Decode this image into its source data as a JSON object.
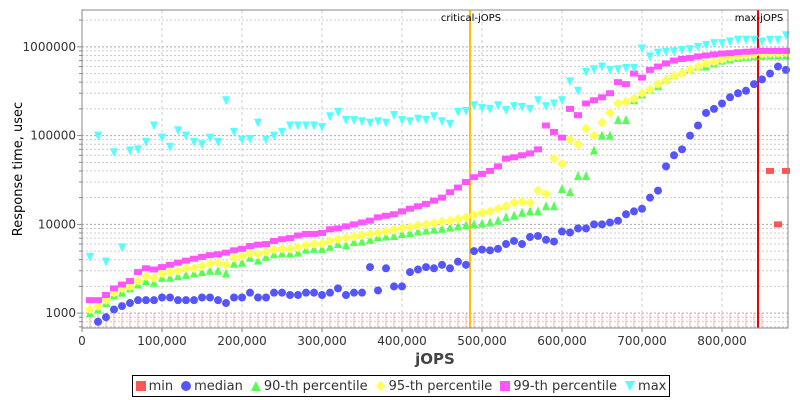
{
  "chart_data": {
    "type": "scatter",
    "title": "",
    "xlabel": "jOPS",
    "ylabel": "Response time, usec",
    "xlim": [
      0,
      882500
    ],
    "ylim": [
      680,
      2600000
    ],
    "yscale": "log",
    "grid": true,
    "legend_position": "bottom",
    "x_ticks": [
      "0",
      "100,000",
      "200,000",
      "300,000",
      "400,000",
      "500,000",
      "600,000",
      "700,000",
      "800,000"
    ],
    "x_tick_values": [
      0,
      100000,
      200000,
      300000,
      400000,
      500000,
      600000,
      700000,
      800000
    ],
    "y_ticks": [
      "1000",
      "10000",
      "100000",
      "1000000"
    ],
    "y_tick_values": [
      1000,
      10000,
      100000,
      1000000
    ],
    "markers": [
      {
        "label": "critical-jOPS",
        "x": 485000,
        "color": "#ffc000"
      },
      {
        "label": "max-jOPS",
        "x": 845000,
        "color": "#ee0000"
      }
    ],
    "x": [
      10000,
      20000,
      30000,
      40000,
      50000,
      60000,
      70000,
      80000,
      90000,
      100000,
      110000,
      120000,
      130000,
      140000,
      150000,
      160000,
      170000,
      180000,
      190000,
      200000,
      210000,
      220000,
      230000,
      240000,
      250000,
      260000,
      270000,
      280000,
      290000,
      300000,
      310000,
      320000,
      330000,
      340000,
      350000,
      360000,
      370000,
      380000,
      390000,
      400000,
      410000,
      420000,
      430000,
      440000,
      450000,
      460000,
      470000,
      480000,
      490000,
      500000,
      510000,
      520000,
      530000,
      540000,
      550000,
      560000,
      570000,
      580000,
      590000,
      600000,
      610000,
      620000,
      630000,
      640000,
      650000,
      660000,
      670000,
      680000,
      690000,
      700000,
      710000,
      720000,
      730000,
      740000,
      750000,
      760000,
      770000,
      780000,
      790000,
      800000,
      810000,
      820000,
      830000,
      840000,
      850000,
      860000,
      870000,
      880000
    ],
    "series": [
      {
        "name": "min",
        "color": "#ff5555",
        "shape": "square",
        "values": [
          500,
          500,
          500,
          500,
          500,
          500,
          500,
          500,
          500,
          500,
          500,
          500,
          500,
          500,
          500,
          500,
          500,
          500,
          500,
          500,
          500,
          500,
          500,
          500,
          500,
          500,
          500,
          500,
          500,
          500,
          500,
          500,
          500,
          500,
          500,
          500,
          500,
          500,
          500,
          500,
          500,
          500,
          500,
          500,
          500,
          500,
          500,
          500,
          500,
          500,
          500,
          500,
          500,
          500,
          500,
          500,
          500,
          500,
          500,
          500,
          500,
          500,
          500,
          500,
          500,
          500,
          500,
          500,
          500,
          500,
          500,
          500,
          500,
          500,
          500,
          500,
          500,
          500,
          500,
          500,
          500,
          500,
          500,
          500,
          500,
          40000,
          10000,
          40000
        ]
      },
      {
        "name": "median",
        "color": "#5555ff",
        "shape": "circle",
        "values": [
          null,
          800,
          900,
          1100,
          1200,
          1300,
          1400,
          1400,
          1400,
          1500,
          1500,
          1400,
          1400,
          1400,
          1500,
          1500,
          1400,
          1300,
          1500,
          1500,
          1700,
          1500,
          1500,
          1700,
          1700,
          1600,
          1600,
          1700,
          1700,
          1600,
          1700,
          1900,
          1600,
          1700,
          1700,
          3300,
          1800,
          3200,
          2000,
          2000,
          2900,
          3100,
          3300,
          3200,
          3500,
          3200,
          3800,
          3500,
          5000,
          5200,
          5100,
          5300,
          6000,
          6500,
          6000,
          7200,
          7400,
          6700,
          6400,
          8300,
          8100,
          9000,
          9000,
          10000,
          10000,
          10500,
          11000,
          13000,
          14000,
          15000,
          20000,
          24000,
          45000,
          60000,
          70000,
          100000,
          130000,
          180000,
          200000,
          230000,
          270000,
          300000,
          320000,
          380000,
          430000,
          500000,
          600000,
          550000
        ]
      },
      {
        "name": "90-th percentile",
        "color": "#55ff55",
        "shape": "triangle-up",
        "values": [
          1000,
          1100,
          1300,
          1600,
          1700,
          1900,
          2100,
          2300,
          2200,
          2500,
          2500,
          2600,
          2700,
          2800,
          2900,
          3000,
          3000,
          2800,
          3600,
          3700,
          4200,
          3900,
          4300,
          4600,
          4700,
          4700,
          4800,
          5200,
          5300,
          5300,
          5600,
          6000,
          5800,
          6300,
          6400,
          6700,
          7200,
          7300,
          7400,
          7800,
          8000,
          8300,
          8500,
          8700,
          8900,
          9200,
          9500,
          9800,
          10000,
          10200,
          10500,
          11000,
          12000,
          12500,
          13500,
          14000,
          14000,
          16000,
          16000,
          25000,
          23000,
          35000,
          35000,
          68000,
          100000,
          100000,
          150000,
          150000,
          250000,
          290000,
          330000,
          360000,
          430000,
          480000,
          520000,
          560000,
          600000,
          600000,
          650000,
          700000,
          720000,
          750000,
          770000,
          780000,
          790000,
          800000,
          800000,
          800000
        ]
      },
      {
        "name": "95-th percentile",
        "color": "#ffff55",
        "shape": "diamond",
        "values": [
          1100,
          1200,
          1400,
          1700,
          1900,
          2000,
          2300,
          2600,
          2500,
          2800,
          2900,
          3000,
          3200,
          3200,
          3400,
          3600,
          3700,
          3500,
          4200,
          4400,
          4700,
          4600,
          4900,
          5200,
          5300,
          5300,
          5500,
          5800,
          6000,
          6100,
          6500,
          6800,
          7000,
          7300,
          7600,
          7800,
          8000,
          8300,
          8700,
          9100,
          9300,
          9700,
          10000,
          10300,
          10700,
          11000,
          11500,
          12000,
          12800,
          13500,
          14000,
          15000,
          16000,
          17500,
          18000,
          17500,
          24000,
          22000,
          55000,
          48000,
          90000,
          80000,
          120000,
          100000,
          140000,
          180000,
          230000,
          240000,
          260000,
          300000,
          330000,
          380000,
          420000,
          470000,
          500000,
          550000,
          600000,
          650000,
          680000,
          720000,
          760000,
          780000,
          800000,
          820000,
          830000,
          840000,
          850000,
          860000
        ]
      },
      {
        "name": "99-th percentile",
        "color": "#ff55ff",
        "shape": "square",
        "values": [
          1400,
          1400,
          1600,
          1900,
          2100,
          2300,
          2900,
          3200,
          3100,
          3300,
          3500,
          3700,
          3900,
          4100,
          4300,
          4500,
          4600,
          4800,
          5100,
          5300,
          5700,
          5900,
          6000,
          6500,
          6800,
          7000,
          7500,
          7800,
          7800,
          8000,
          8800,
          9000,
          9500,
          10000,
          10500,
          11000,
          12000,
          12500,
          13000,
          14000,
          15000,
          16000,
          17000,
          18500,
          20000,
          23000,
          26000,
          30000,
          34000,
          37000,
          40000,
          45000,
          55000,
          57000,
          60000,
          63000,
          70000,
          130000,
          110000,
          95000,
          200000,
          170000,
          230000,
          250000,
          270000,
          300000,
          400000,
          380000,
          500000,
          450000,
          550000,
          600000,
          650000,
          700000,
          730000,
          750000,
          780000,
          800000,
          820000,
          840000,
          850000,
          870000,
          880000,
          890000,
          900000,
          900000,
          900000,
          900000
        ]
      },
      {
        "name": "max",
        "color": "#55ffff",
        "shape": "triangle-down",
        "values": [
          4300,
          100000,
          3800,
          65000,
          5500,
          68000,
          70000,
          85000,
          130000,
          95000,
          75000,
          115000,
          100000,
          85000,
          80000,
          95000,
          85000,
          250000,
          110000,
          90000,
          92000,
          140000,
          90000,
          100000,
          110000,
          130000,
          130000,
          130000,
          130000,
          125000,
          165000,
          185000,
          150000,
          150000,
          145000,
          140000,
          145000,
          140000,
          170000,
          150000,
          145000,
          155000,
          150000,
          165000,
          145000,
          135000,
          185000,
          190000,
          220000,
          205000,
          200000,
          220000,
          195000,
          215000,
          210000,
          200000,
          250000,
          215000,
          230000,
          250000,
          410000,
          320000,
          520000,
          560000,
          600000,
          550000,
          560000,
          580000,
          580000,
          960000,
          780000,
          860000,
          880000,
          890000,
          920000,
          940000,
          1000000,
          1050000,
          1100000,
          1100000,
          1150000,
          1200000,
          1200000,
          1200000,
          1150000,
          1200000,
          1200000,
          1350000
        ]
      }
    ]
  }
}
